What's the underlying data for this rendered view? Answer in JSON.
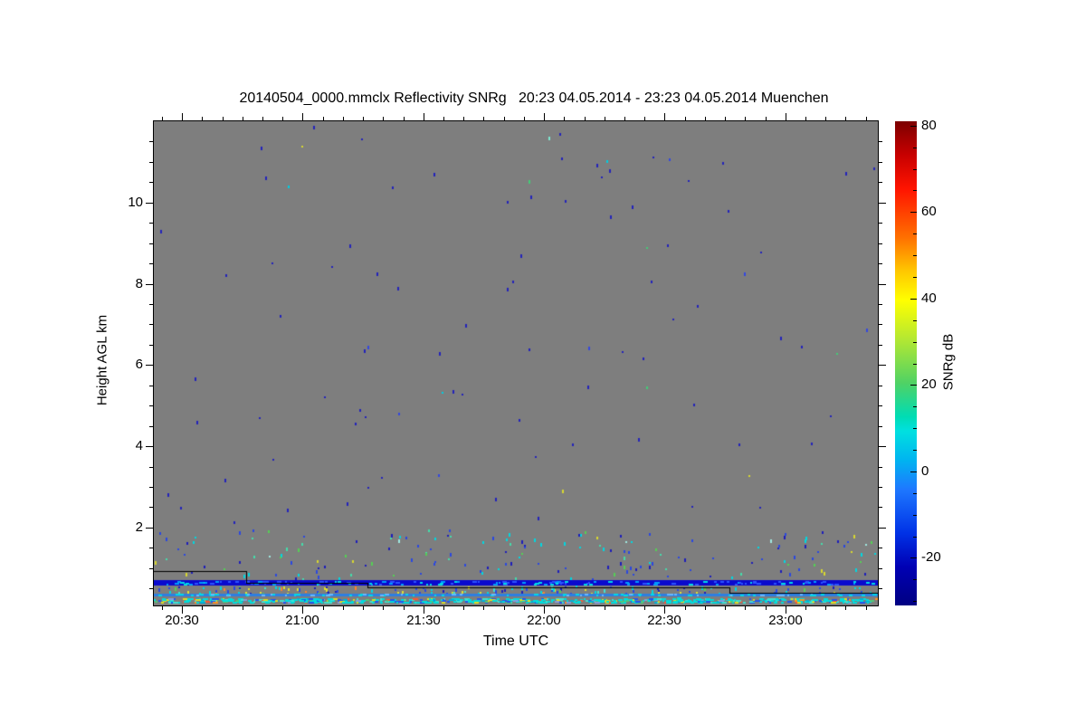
{
  "page": {
    "background_color": "#ffffff"
  },
  "chart_data": {
    "type": "heatmap",
    "title": "20140504_0000.mmclx Reflectivity SNRg   20:23 04.05.2014 - 23:23 04.05.2014 Muenchen",
    "file": "20140504_0000.mmclx",
    "quantity": "Reflectivity SNRg",
    "time_start": "20:23 04.05.2014",
    "time_end": "23:23 04.05.2014",
    "site": "Muenchen",
    "xlabel": "Time UTC",
    "ylabel": "Height AGL km",
    "colorbar_label": "SNRg dB",
    "duration_minutes": 180,
    "x_axis": {
      "major_ticks": [
        {
          "minute": 7,
          "label": "20:30"
        },
        {
          "minute": 37,
          "label": "21:00"
        },
        {
          "minute": 67,
          "label": "21:30"
        },
        {
          "minute": 97,
          "label": "22:00"
        },
        {
          "minute": 127,
          "label": "22:30"
        },
        {
          "minute": 157,
          "label": "23:00"
        }
      ],
      "minor_first_minute": 2,
      "minor_step_minutes": 5
    },
    "y_axis": {
      "ylim_km": [
        0.08,
        12.0
      ],
      "major_ticks_km": [
        2,
        4,
        6,
        8,
        10
      ],
      "minor_step_km": 0.5
    },
    "colorbar": {
      "vmin": -31,
      "vmax": 81,
      "major_ticks": [
        80,
        60,
        40,
        20,
        0,
        -20
      ],
      "minor_step": 5,
      "colormap": "jet",
      "position": "right"
    },
    "grid": false,
    "legend": false,
    "no_signal_color": "#7e7e7e",
    "seed": 42,
    "noise_speckle_layers": [
      {
        "name": "free-troposphere-noise",
        "km": [
          2.0,
          11.95
        ],
        "count": 95,
        "colors": [
          [
            "#2222bb",
            78
          ],
          [
            "#3448e0",
            10
          ],
          [
            "#00cde0",
            4
          ],
          [
            "#44cc77",
            3
          ],
          [
            "#d8d830",
            3
          ],
          [
            "#7fe8d0",
            2
          ]
        ]
      },
      {
        "name": "aerosol-layer-1p5km",
        "km": [
          1.25,
          1.95
        ],
        "count": 95,
        "colors": [
          [
            "#2a48e0",
            30
          ],
          [
            "#1d1dbb",
            22
          ],
          [
            "#00d8e0",
            18
          ],
          [
            "#44ddaa",
            12
          ],
          [
            "#55cf55",
            9
          ],
          [
            "#d8d830",
            6
          ],
          [
            "#9fe8e0",
            3
          ]
        ]
      },
      {
        "name": "below-1km-noise",
        "km": [
          0.74,
          1.25
        ],
        "count": 75,
        "colors": [
          [
            "#2a48e0",
            32
          ],
          [
            "#1d1dbb",
            26
          ],
          [
            "#00d8e0",
            16
          ],
          [
            "#44ddaa",
            9
          ],
          [
            "#55cf55",
            7
          ],
          [
            "#d8d830",
            10
          ]
        ]
      },
      {
        "name": "sub-cloud-band",
        "km": [
          0.38,
          0.56
        ],
        "count": 130,
        "colors": [
          [
            "#2a48e0",
            24
          ],
          [
            "#1d1dbb",
            16
          ],
          [
            "#00d8e0",
            24
          ],
          [
            "#40e0d0",
            10
          ],
          [
            "#55cf55",
            8
          ],
          [
            "#e0e030",
            14
          ],
          [
            "#ff8030",
            4
          ]
        ]
      }
    ],
    "lines": {
      "blue_band": {
        "km": [
          0.58,
          0.71
        ],
        "color": "#0a0ace",
        "dash_count": 150,
        "dash_colors": [
          [
            "#2a52ff",
            50
          ],
          [
            "#0099ff",
            28
          ],
          [
            "#00d8e8",
            22
          ]
        ]
      },
      "light_blue_line": {
        "km": [
          0.3,
          0.37
        ],
        "color": "#2e7fe0",
        "dash_count": 90,
        "dash_colors": [
          [
            "#00d8e8",
            60
          ],
          [
            "#66b8ff",
            40
          ]
        ]
      },
      "black_step_line": {
        "color": "#000000",
        "segments": [
          {
            "minutes": [
              0,
              23
            ],
            "km": 0.92
          },
          {
            "minutes": [
              23,
              53
            ],
            "km": 0.64
          },
          {
            "minutes": [
              53,
              143
            ],
            "km": 0.53
          },
          {
            "minutes": [
              143,
              180
            ],
            "km": 0.4
          }
        ]
      },
      "surface_band": {
        "km": [
          0.12,
          0.27
        ],
        "dash_count": 640,
        "colors": [
          [
            "#00dcdc",
            46
          ],
          [
            "#40e0d0",
            12
          ],
          [
            "#2255ee",
            12
          ],
          [
            "#00b0d8",
            8
          ],
          [
            "#dede20",
            9
          ],
          [
            "#50c878",
            5
          ],
          [
            "#ff5533",
            3
          ],
          [
            "#8899dd",
            3
          ],
          [
            "#ff9020",
            2
          ]
        ]
      }
    }
  }
}
